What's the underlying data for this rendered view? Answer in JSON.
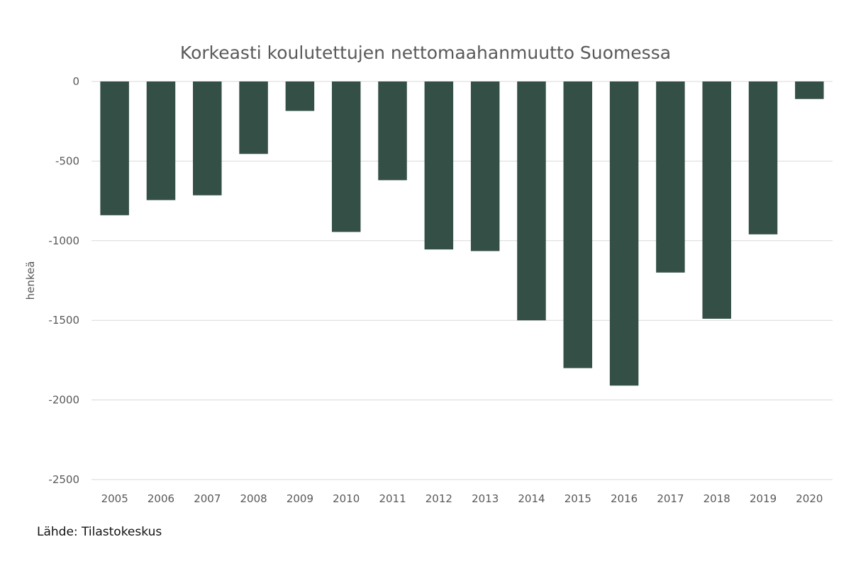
{
  "chart_data": {
    "type": "bar",
    "title": "Korkeasti koulutettujen nettomaahanmuutto Suomessa",
    "ylabel": "henkeä",
    "xlabel": "",
    "categories": [
      "2005",
      "2006",
      "2007",
      "2008",
      "2009",
      "2010",
      "2011",
      "2012",
      "2013",
      "2014",
      "2015",
      "2016",
      "2017",
      "2018",
      "2019",
      "2020"
    ],
    "values": [
      -840,
      -745,
      -715,
      -455,
      -185,
      -945,
      -620,
      -1055,
      -1065,
      -1500,
      -1800,
      -1910,
      -1200,
      -1490,
      -960,
      -110
    ],
    "ylim": [
      -2500,
      0
    ],
    "yticks": [
      0,
      -500,
      -1000,
      -1500,
      -2000,
      -2500
    ],
    "ytick_labels": [
      "0",
      "-500",
      "-1000",
      "-1500",
      "-2000",
      "-2500"
    ],
    "grid": true,
    "legend": "none",
    "bar_color": "#344f46",
    "grid_color": "#d9d9d9"
  },
  "source": "Lähde: Tilastokeskus"
}
